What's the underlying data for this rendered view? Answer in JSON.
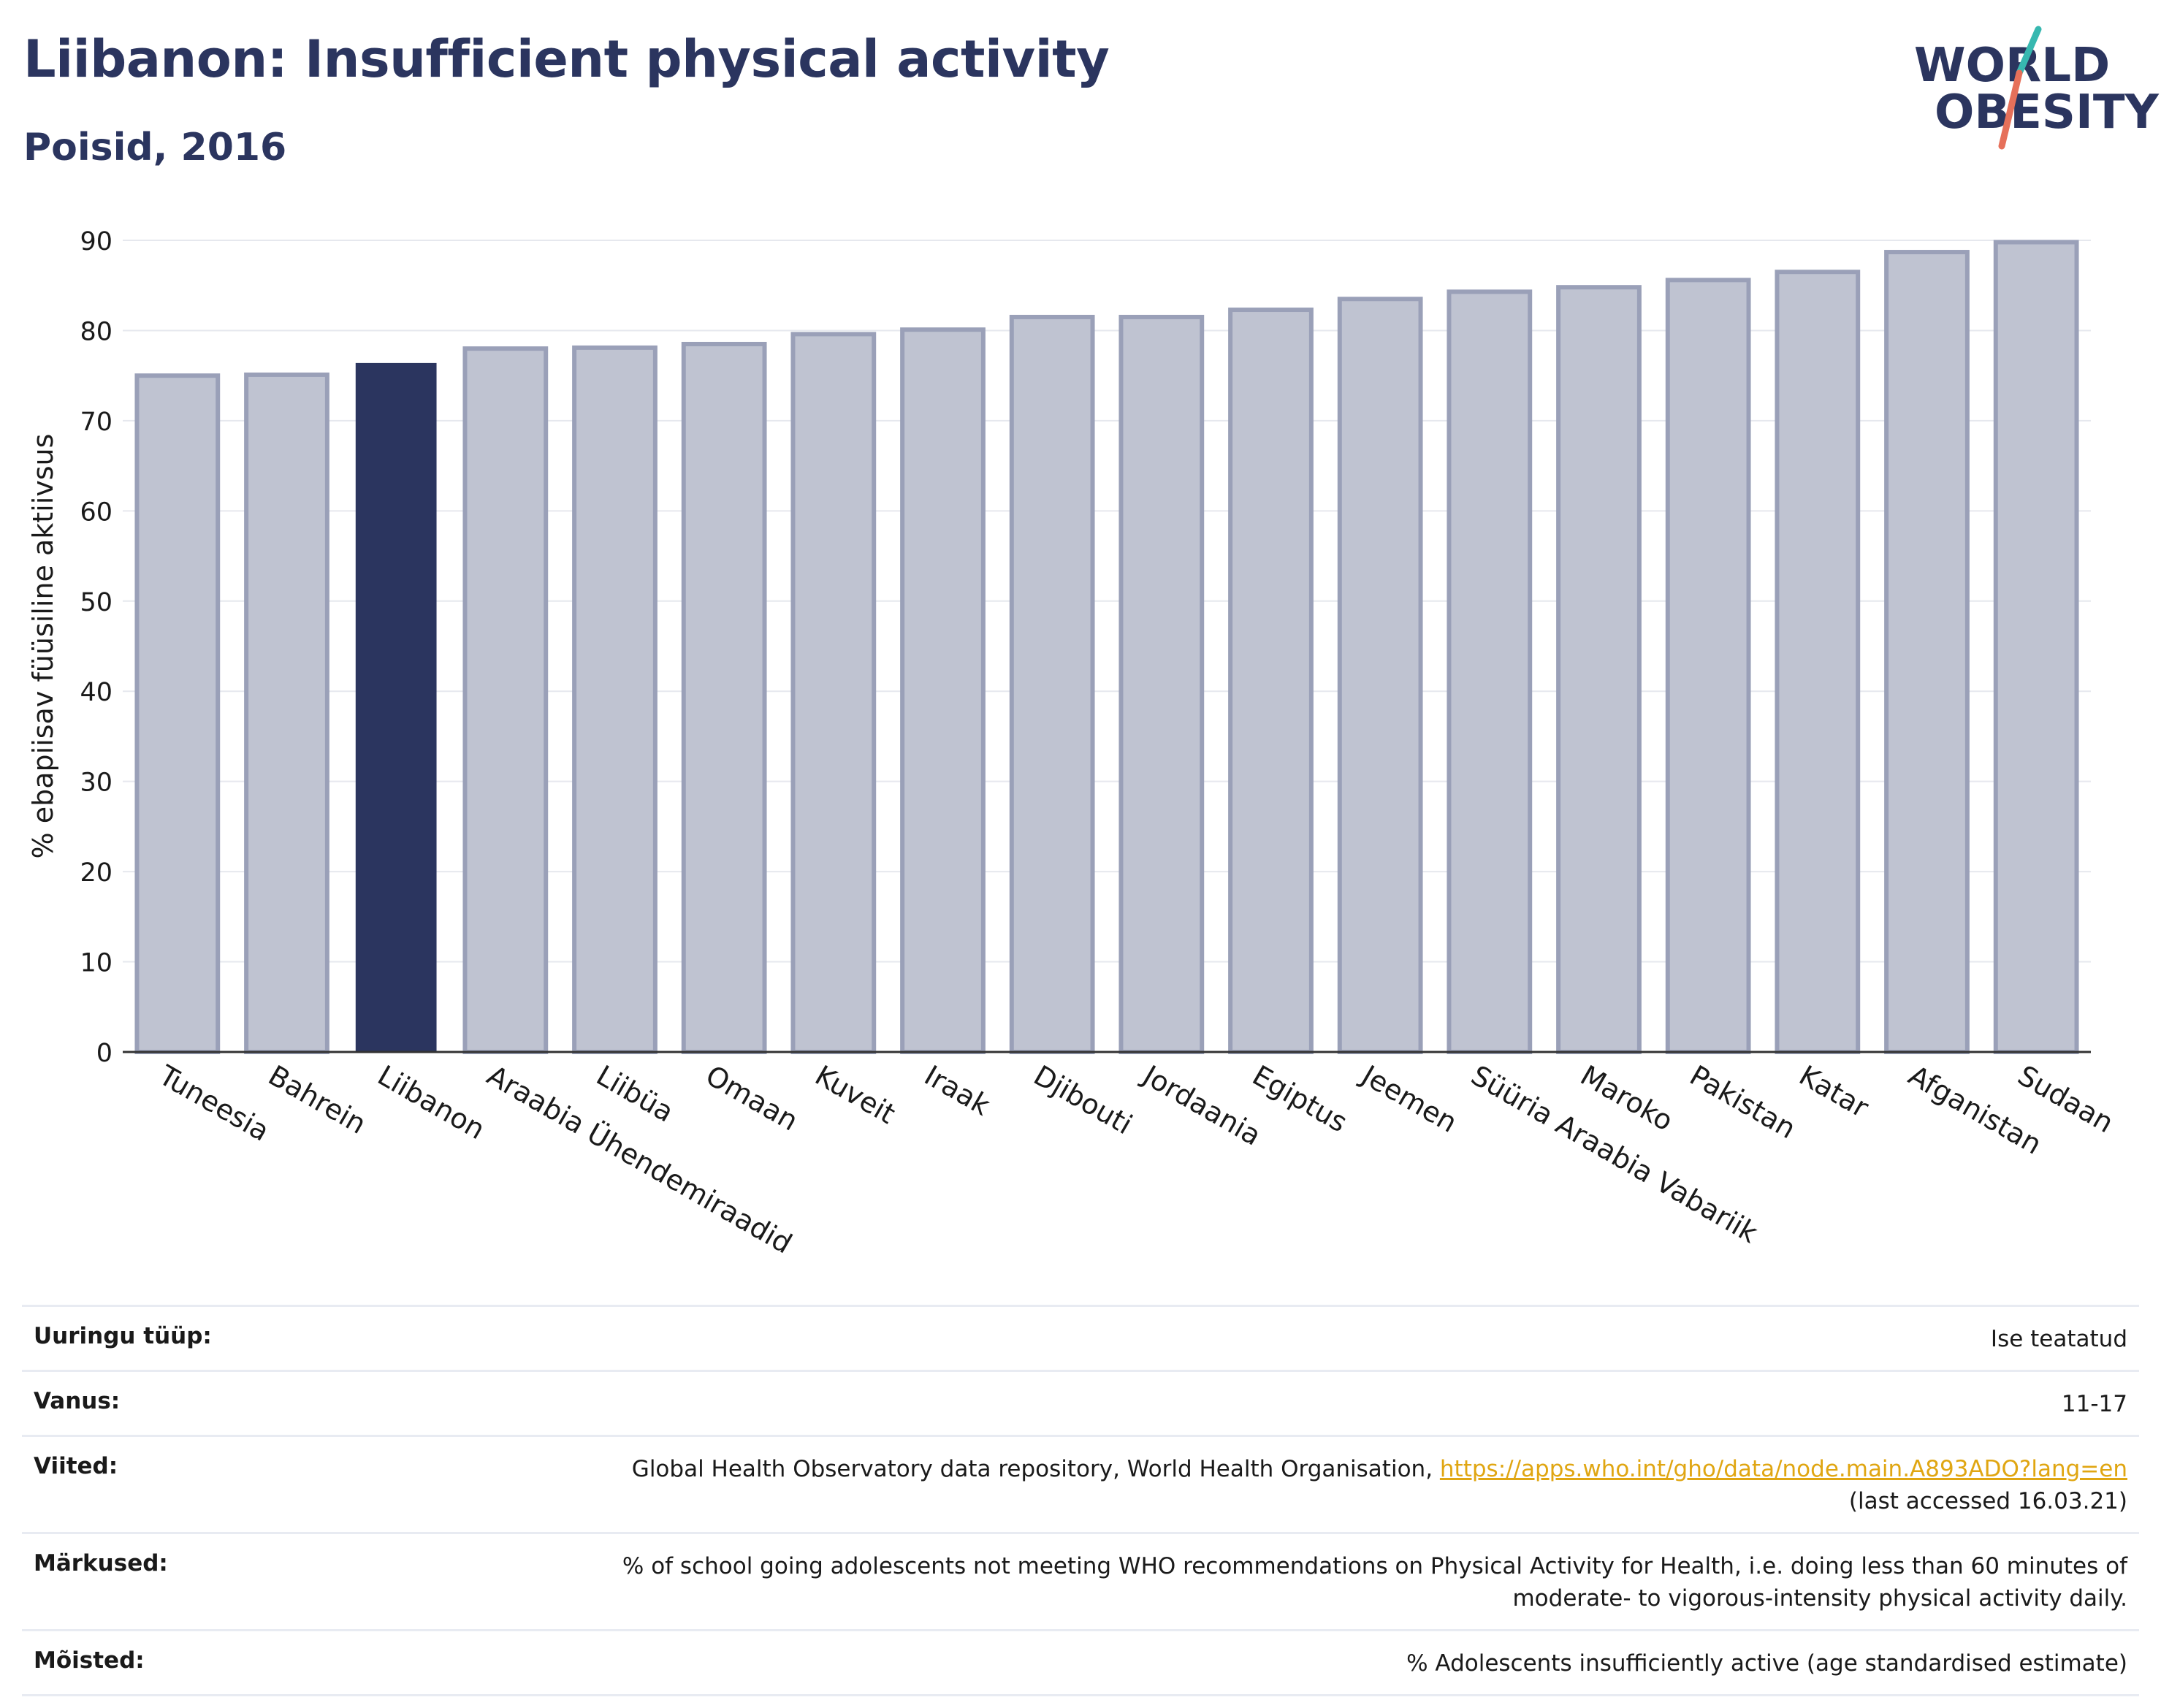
{
  "header": {
    "title": "Liibanon: Insufficient physical activity",
    "subtitle": "Poisid, 2016"
  },
  "logo": {
    "line1": "WORLD",
    "line2": "OBESITY"
  },
  "colors": {
    "highlight": "#2b355f",
    "bar_fill": "#bfc3d1",
    "bar_stroke": "#9aa0b8",
    "logo_teal": "#37b8b0",
    "logo_coral": "#e6705a",
    "link": "#e0a612"
  },
  "chart_data": {
    "type": "bar",
    "ylabel": "% ebapiisav füüsiline aktiivsus",
    "ylim": [
      0,
      90
    ],
    "yticks": [
      0,
      10,
      20,
      30,
      40,
      50,
      60,
      70,
      80,
      90
    ],
    "grid": true,
    "highlight": "Liibanon",
    "categories": [
      "Tuneesia",
      "Bahrein",
      "Liibanon",
      "Araabia Ühendemiraadid",
      "Liibüa",
      "Omaan",
      "Kuveit",
      "Iraak",
      "Djibouti",
      "Jordaania",
      "Egiptus",
      "Jeemen",
      "Süüria Araabia Vabariik",
      "Maroko",
      "Pakistan",
      "Katar",
      "Afganistan",
      "Sudaan"
    ],
    "values": [
      75.0,
      75.1,
      76.4,
      78.0,
      78.1,
      78.5,
      79.6,
      80.1,
      81.5,
      81.5,
      82.3,
      83.5,
      84.3,
      84.8,
      85.6,
      86.5,
      88.7,
      89.8
    ]
  },
  "info_table": [
    {
      "key": "Uuringu tüüp:",
      "value": "Ise teatatud"
    },
    {
      "key": "Vanus:",
      "value": "11-17"
    },
    {
      "key": "Viited:",
      "value": "Global Health Observatory data repository, World Health Organisation, ",
      "link": "https://apps.who.int/gho/data/node.main.A893ADO?lang=en",
      "value2": "(last accessed 16.03.21)"
    },
    {
      "key": "Märkused:",
      "value": "% of school going adolescents not meeting WHO recommendations on Physical Activity for Health, i.e. doing less than 60 minutes of",
      "value2": "moderate- to vigorous-intensity physical activity daily."
    },
    {
      "key": "Mõisted:",
      "value": "% Adolescents insufficiently active (age standardised estimate)"
    }
  ]
}
